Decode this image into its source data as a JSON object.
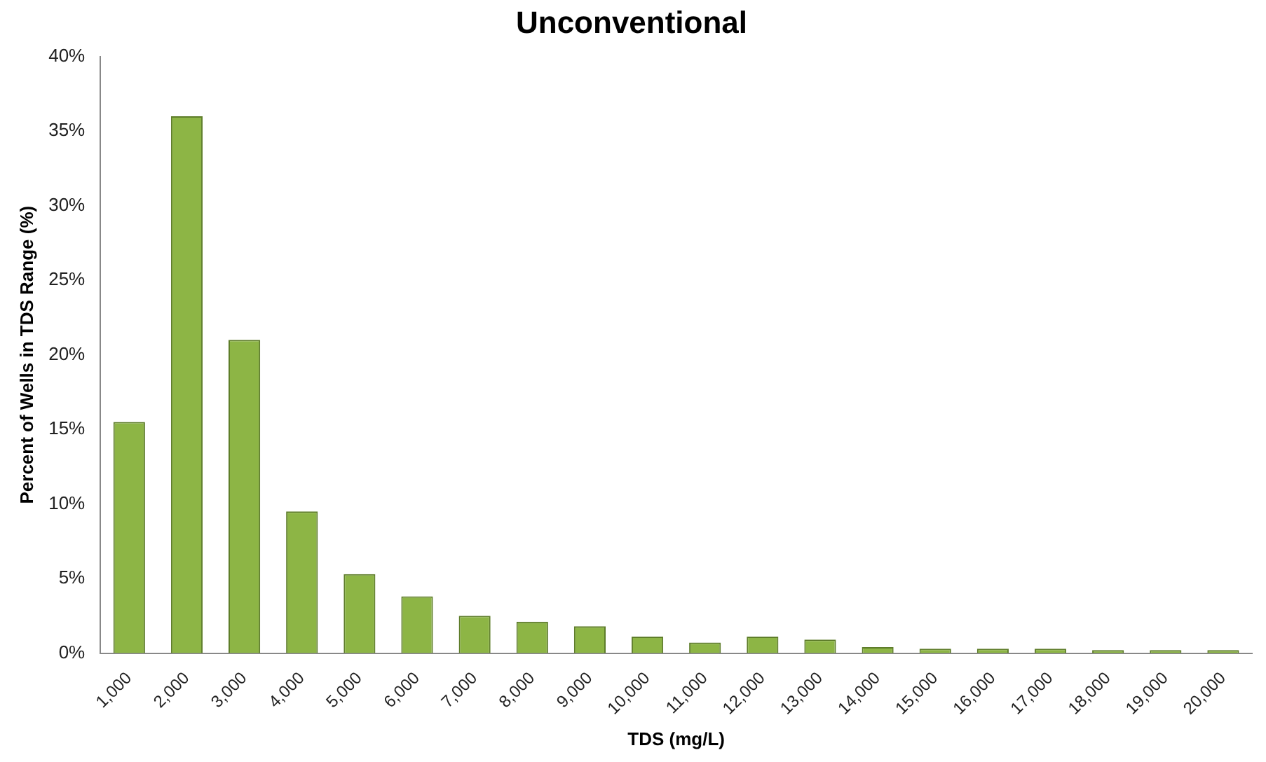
{
  "chart_data": {
    "type": "bar",
    "title": "Unconventional",
    "xlabel": "TDS (mg/L)",
    "ylabel": "Percent of Wells in TDS Range (%)",
    "categories": [
      "1,000",
      "2,000",
      "3,000",
      "4,000",
      "5,000",
      "6,000",
      "7,000",
      "8,000",
      "9,000",
      "10,000",
      "11,000",
      "12,000",
      "13,000",
      "14,000",
      "15,000",
      "16,000",
      "17,000",
      "18,000",
      "19,000",
      "20,000"
    ],
    "values": [
      15.5,
      36,
      21,
      9.5,
      5.3,
      3.8,
      2.5,
      2.1,
      1.8,
      1.1,
      0.7,
      1.1,
      0.9,
      0.4,
      0.3,
      0.3,
      0.3,
      0.2,
      0.2,
      0.2
    ],
    "color": "#8db545",
    "ylim": [
      0,
      40
    ],
    "yticks": [
      {
        "value": 0,
        "label": "0%"
      },
      {
        "value": 5,
        "label": "5%"
      },
      {
        "value": 10,
        "label": "10%"
      },
      {
        "value": 15,
        "label": "15%"
      },
      {
        "value": 20,
        "label": "20%"
      },
      {
        "value": 25,
        "label": "25%"
      },
      {
        "value": 30,
        "label": "30%"
      },
      {
        "value": 35,
        "label": "35%"
      },
      {
        "value": 40,
        "label": "40%"
      }
    ],
    "grid": false,
    "legend": false
  }
}
